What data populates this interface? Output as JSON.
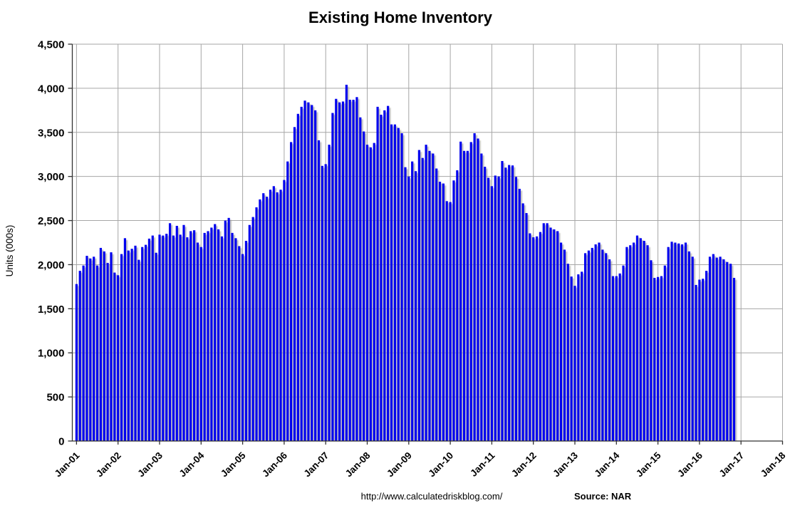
{
  "page": {
    "background": "#ffffff"
  },
  "header": {
    "title": "Existing Home Inventory"
  },
  "footer": {
    "url_text": "http://www.calculatedriskblog.com/",
    "source_text": "Source: NAR"
  },
  "colors": {
    "bar": "#0202ee",
    "bar_shadow": "#9a9a9a",
    "gridline": "#a6a6a6",
    "axis": "#333333",
    "text": "#000000"
  },
  "chart_data": {
    "type": "bar",
    "title": "Existing Home Inventory",
    "xlabel": "",
    "ylabel": "Units (000s)",
    "ylim": [
      0,
      4500
    ],
    "ytick_step": 500,
    "ytick_labels": [
      "0",
      "500",
      "1,000",
      "1,500",
      "2,000",
      "2,500",
      "3,000",
      "3,500",
      "4,000",
      "4,500"
    ],
    "xtick_labels": [
      "Jan-01",
      "Jan-02",
      "Jan-03",
      "Jan-04",
      "Jan-05",
      "Jan-06",
      "Jan-07",
      "Jan-08",
      "Jan-09",
      "Jan-10",
      "Jan-11",
      "Jan-12",
      "Jan-13",
      "Jan-14",
      "Jan-15",
      "Jan-16",
      "Jan-17",
      "Jan-18"
    ],
    "grid": true,
    "legend_position": "none",
    "source": "NAR",
    "first_bar_month": "Jan-01",
    "last_bar_month": "Nov-16",
    "series": [
      {
        "name": "Existing Home Inventory (thousands)",
        "monthly_values": [
          1780,
          1930,
          1990,
          2100,
          2070,
          2090,
          1990,
          2190,
          2150,
          2020,
          2140,
          1910,
          1880,
          2120,
          2300,
          2160,
          2180,
          2215,
          2055,
          2200,
          2225,
          2295,
          2330,
          2135,
          2340,
          2330,
          2350,
          2470,
          2330,
          2440,
          2340,
          2450,
          2310,
          2380,
          2390,
          2250,
          2200,
          2360,
          2380,
          2420,
          2460,
          2400,
          2320,
          2500,
          2530,
          2360,
          2300,
          2210,
          2120,
          2270,
          2450,
          2540,
          2650,
          2740,
          2810,
          2770,
          2850,
          2890,
          2820,
          2850,
          2960,
          3170,
          3390,
          3560,
          3710,
          3790,
          3860,
          3840,
          3810,
          3750,
          3410,
          3120,
          3140,
          3360,
          3720,
          3880,
          3840,
          3850,
          4040,
          3870,
          3870,
          3900,
          3670,
          3510,
          3360,
          3330,
          3380,
          3790,
          3700,
          3750,
          3800,
          3590,
          3590,
          3550,
          3490,
          3105,
          3000,
          3170,
          3060,
          3300,
          3210,
          3360,
          3290,
          3260,
          3090,
          2940,
          2920,
          2720,
          2710,
          2955,
          3070,
          3395,
          3290,
          3290,
          3390,
          3490,
          3430,
          3260,
          3110,
          2985,
          2890,
          3010,
          3000,
          3175,
          3100,
          3130,
          3125,
          2995,
          2860,
          2695,
          2585,
          2355,
          2310,
          2320,
          2370,
          2470,
          2470,
          2420,
          2400,
          2380,
          2250,
          2170,
          2010,
          1865,
          1760,
          1890,
          1920,
          2130,
          2160,
          2190,
          2230,
          2250,
          2170,
          2130,
          2060,
          1870,
          1870,
          1900,
          1990,
          2200,
          2220,
          2250,
          2330,
          2300,
          2270,
          2220,
          2050,
          1850,
          1860,
          1870,
          1990,
          2200,
          2260,
          2250,
          2240,
          2230,
          2250,
          2150,
          2090,
          1770,
          1830,
          1840,
          1930,
          2090,
          2120,
          2080,
          2090,
          2060,
          2030,
          2010,
          1850
        ]
      }
    ]
  }
}
